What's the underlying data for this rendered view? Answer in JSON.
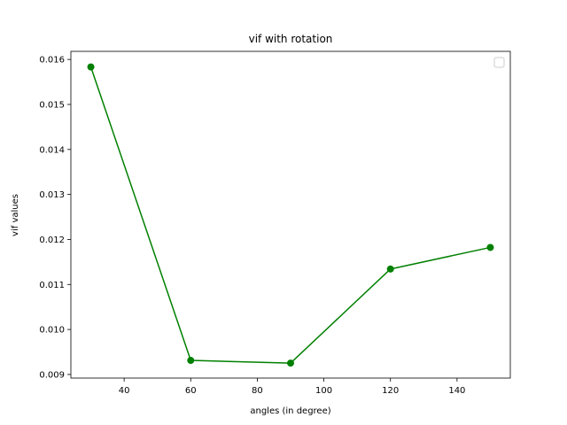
{
  "chart_data": {
    "type": "line",
    "title": "vif with rotation",
    "xlabel": "angles (in degree)",
    "ylabel": "vif values",
    "x": [
      30,
      60,
      90,
      120,
      150
    ],
    "series": [
      {
        "values": [
          0.015833,
          0.009313,
          0.009253,
          0.011343,
          0.011823
        ],
        "color": "#008000",
        "marker": "circle"
      }
    ],
    "xlim": [
      24,
      156
    ],
    "ylim": [
      0.00892,
      0.01618
    ],
    "xticks": [
      40,
      60,
      80,
      100,
      120,
      140
    ],
    "yticks": [
      0.009,
      0.01,
      0.011,
      0.012,
      0.013,
      0.014,
      0.015,
      0.016
    ],
    "ytick_labels": [
      "0.009",
      "0.010",
      "0.011",
      "0.012",
      "0.013",
      "0.014",
      "0.015",
      "0.016"
    ],
    "grid": false,
    "legend": {
      "placement": "top-right",
      "entries": []
    }
  }
}
